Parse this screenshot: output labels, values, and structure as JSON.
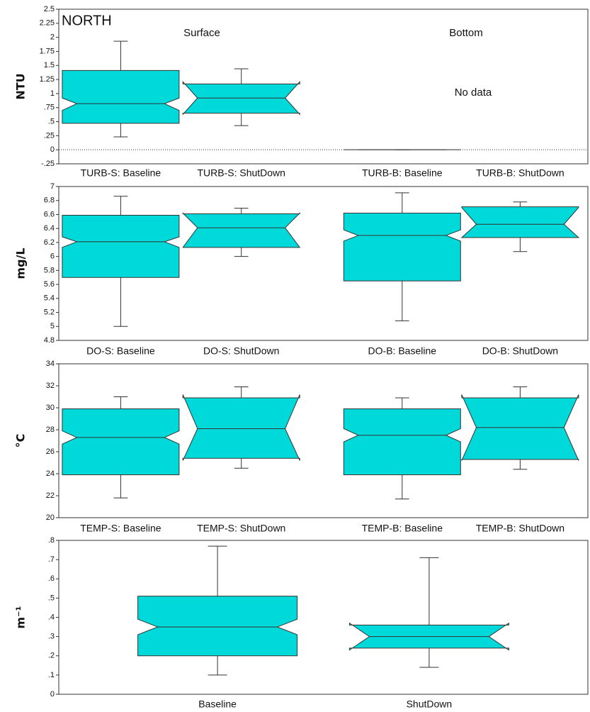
{
  "chart_data": [
    {
      "type": "box",
      "title": "NORTH",
      "column_labels": [
        "Surface",
        "Bottom"
      ],
      "note": "No data",
      "ylabel": "NTU",
      "categories": [
        "TURB-S: Baseline",
        "TURB-S: ShutDown",
        "TURB-B: Baseline",
        "TURB-B: ShutDown"
      ],
      "boxes": [
        {
          "whisker_low": 0.23,
          "q1": 0.47,
          "notch_low": 0.7,
          "median": 0.82,
          "notch_high": 0.92,
          "q3": 1.41,
          "whisker_high": 1.93
        },
        {
          "whisker_low": 0.43,
          "q1": 0.65,
          "notch_low": 0.63,
          "median": 0.92,
          "notch_high": 1.21,
          "q3": 1.17,
          "whisker_high": 1.44
        },
        {
          "whisker_low": 0,
          "q1": 0,
          "notch_low": 0,
          "median": 0,
          "notch_high": 0,
          "q3": 0,
          "whisker_high": 0
        },
        null
      ],
      "color": "#00d9d9",
      "reference_line": 0,
      "ylim": [
        -0.25,
        2.5
      ],
      "yticks": [
        {
          "value": -0.25,
          "label": "-.25"
        },
        0,
        {
          "value": 0.25,
          "label": ".25"
        },
        {
          "value": 0.5,
          "label": ".5"
        },
        {
          "value": 0.75,
          "label": ".75"
        },
        1,
        1.25,
        1.5,
        1.75,
        2,
        2.25,
        2.5
      ]
    },
    {
      "type": "box",
      "ylabel": "mg/L",
      "categories": [
        "DO-S: Baseline",
        "DO-S: ShutDown",
        "DO-B: Baseline",
        "DO-B: ShutDown"
      ],
      "boxes": [
        {
          "whisker_low": 5.0,
          "q1": 5.7,
          "notch_low": 6.13,
          "median": 6.21,
          "notch_high": 6.28,
          "q3": 6.59,
          "whisker_high": 6.86
        },
        {
          "whisker_low": 6.0,
          "q1": 6.13,
          "notch_low": 6.13,
          "median": 6.41,
          "notch_high": 6.62,
          "q3": 6.61,
          "whisker_high": 6.69
        },
        {
          "whisker_low": 5.08,
          "q1": 5.65,
          "notch_low": 6.22,
          "median": 6.3,
          "notch_high": 6.38,
          "q3": 6.62,
          "whisker_high": 6.91
        },
        {
          "whisker_low": 6.07,
          "q1": 6.27,
          "notch_low": 6.27,
          "median": 6.46,
          "notch_high": 6.7,
          "q3": 6.71,
          "whisker_high": 6.78
        }
      ],
      "color": "#00d9d9",
      "ylim": [
        4.8,
        7
      ],
      "yticks": [
        4.8,
        5,
        5.2,
        5.4,
        5.6,
        5.8,
        6,
        6.2,
        6.4,
        6.6,
        6.8,
        7
      ]
    },
    {
      "type": "box",
      "ylabel": "°C",
      "categories": [
        "TEMP-S: Baseline",
        "TEMP-S: ShutDown",
        "TEMP-B: Baseline",
        "TEMP-B: ShutDown"
      ],
      "boxes": [
        {
          "whisker_low": 21.8,
          "q1": 23.9,
          "notch_low": 26.7,
          "median": 27.3,
          "notch_high": 27.9,
          "q3": 29.9,
          "whisker_high": 31.0
        },
        {
          "whisker_low": 24.5,
          "q1": 25.4,
          "notch_low": 25.2,
          "median": 28.1,
          "notch_high": 31.2,
          "q3": 30.9,
          "whisker_high": 31.9
        },
        {
          "whisker_low": 21.7,
          "q1": 23.9,
          "notch_low": 26.9,
          "median": 27.5,
          "notch_high": 28.1,
          "q3": 29.9,
          "whisker_high": 30.9
        },
        {
          "whisker_low": 24.4,
          "q1": 25.3,
          "notch_low": 25.2,
          "median": 28.2,
          "notch_high": 31.2,
          "q3": 30.9,
          "whisker_high": 31.9
        }
      ],
      "color": "#00d9d9",
      "ylim": [
        20,
        34
      ],
      "yticks": [
        20,
        22,
        24,
        26,
        28,
        30,
        32,
        34
      ]
    },
    {
      "type": "box",
      "ylabel": "m⁻¹",
      "categories": [
        "Baseline",
        "ShutDown"
      ],
      "boxes": [
        {
          "whisker_low": 0.1,
          "q1": 0.2,
          "notch_low": 0.31,
          "median": 0.35,
          "notch_high": 0.39,
          "q3": 0.51,
          "whisker_high": 0.77
        },
        {
          "whisker_low": 0.14,
          "q1": 0.24,
          "notch_low": 0.23,
          "median": 0.3,
          "notch_high": 0.37,
          "q3": 0.36,
          "whisker_high": 0.71
        }
      ],
      "color": "#00d9d9",
      "ylim": [
        0,
        0.8
      ],
      "yticks": [
        0,
        {
          "value": 0.1,
          "label": ".1"
        },
        {
          "value": 0.2,
          "label": ".2"
        },
        {
          "value": 0.3,
          "label": ".3"
        },
        {
          "value": 0.4,
          "label": ".4"
        },
        {
          "value": 0.5,
          "label": ".5"
        },
        {
          "value": 0.6,
          "label": ".6"
        },
        {
          "value": 0.7,
          "label": ".7"
        },
        {
          "value": 0.8,
          "label": ".8"
        }
      ]
    }
  ]
}
